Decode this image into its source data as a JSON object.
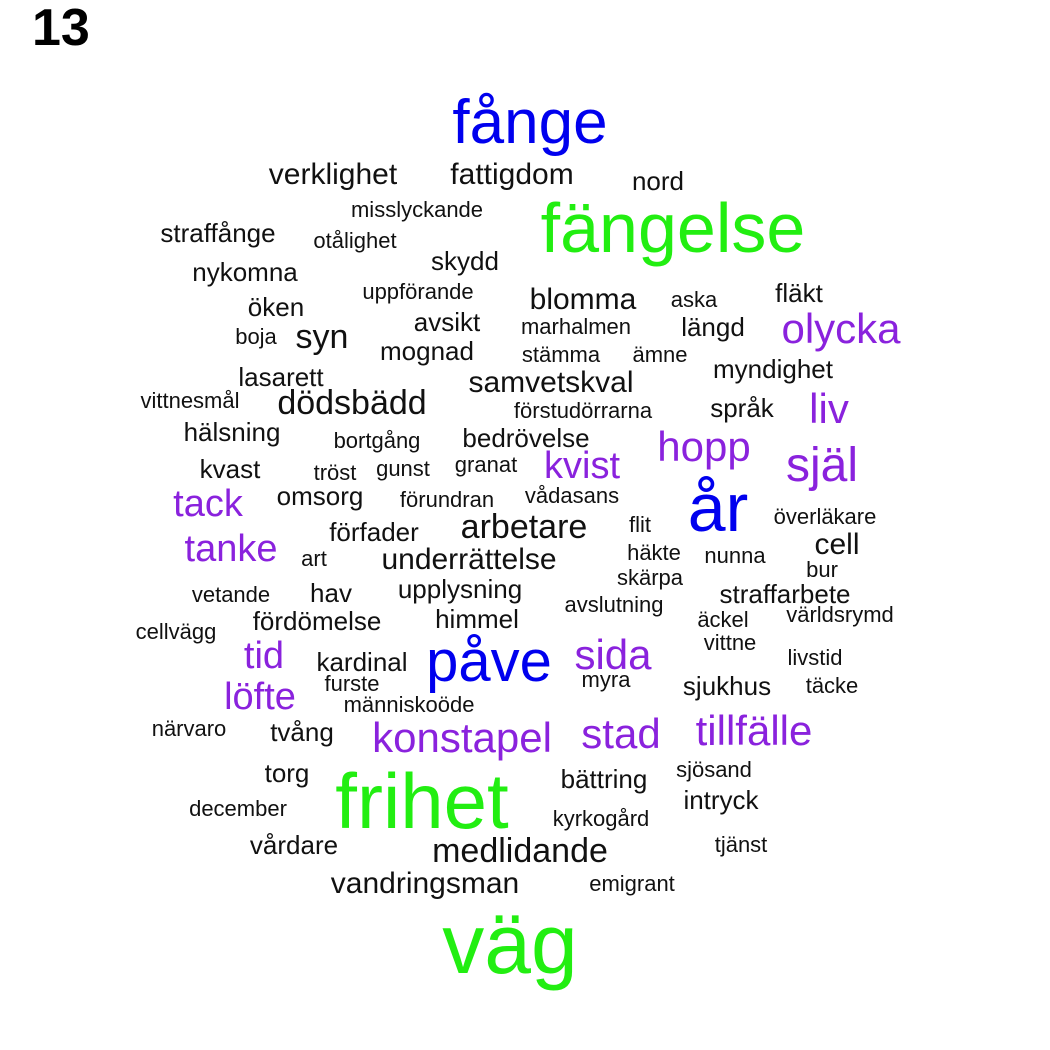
{
  "panel_label": "13",
  "colors": {
    "green": "#22ee11",
    "blue": "#0000ee",
    "purple": "#8a22dd",
    "black": "#111111"
  },
  "words": [
    {
      "text": "fånge",
      "color": "blue"
    },
    {
      "text": "verklighet",
      "color": "black"
    },
    {
      "text": "fattigdom",
      "color": "black"
    },
    {
      "text": "nord",
      "color": "black"
    },
    {
      "text": "misslyckande",
      "color": "black"
    },
    {
      "text": "fängelse",
      "color": "green"
    },
    {
      "text": "straffånge",
      "color": "black"
    },
    {
      "text": "otålighet",
      "color": "black"
    },
    {
      "text": "skydd",
      "color": "black"
    },
    {
      "text": "nykomna",
      "color": "black"
    },
    {
      "text": "uppförande",
      "color": "black"
    },
    {
      "text": "blomma",
      "color": "black"
    },
    {
      "text": "aska",
      "color": "black"
    },
    {
      "text": "fläkt",
      "color": "black"
    },
    {
      "text": "öken",
      "color": "black"
    },
    {
      "text": "avsikt",
      "color": "black"
    },
    {
      "text": "marhalmen",
      "color": "black"
    },
    {
      "text": "längd",
      "color": "black"
    },
    {
      "text": "olycka",
      "color": "purple"
    },
    {
      "text": "boja",
      "color": "black"
    },
    {
      "text": "syn",
      "color": "black"
    },
    {
      "text": "mognad",
      "color": "black"
    },
    {
      "text": "stämma",
      "color": "black"
    },
    {
      "text": "ämne",
      "color": "black"
    },
    {
      "text": "lasarett",
      "color": "black"
    },
    {
      "text": "myndighet",
      "color": "black"
    },
    {
      "text": "samvetskval",
      "color": "black"
    },
    {
      "text": "vittnesmål",
      "color": "black"
    },
    {
      "text": "dödsbädd",
      "color": "black"
    },
    {
      "text": "förstudörrarna",
      "color": "black"
    },
    {
      "text": "språk",
      "color": "black"
    },
    {
      "text": "liv",
      "color": "purple"
    },
    {
      "text": "hälsning",
      "color": "black"
    },
    {
      "text": "bortgång",
      "color": "black"
    },
    {
      "text": "bedrövelse",
      "color": "black"
    },
    {
      "text": "hopp",
      "color": "purple"
    },
    {
      "text": "själ",
      "color": "purple"
    },
    {
      "text": "kvast",
      "color": "black"
    },
    {
      "text": "tröst",
      "color": "black"
    },
    {
      "text": "gunst",
      "color": "black"
    },
    {
      "text": "granat",
      "color": "black"
    },
    {
      "text": "kvist",
      "color": "purple"
    },
    {
      "text": "år",
      "color": "blue"
    },
    {
      "text": "tack",
      "color": "purple"
    },
    {
      "text": "omsorg",
      "color": "black"
    },
    {
      "text": "förundran",
      "color": "black"
    },
    {
      "text": "vådasans",
      "color": "black"
    },
    {
      "text": "flit",
      "color": "black"
    },
    {
      "text": "överläkare",
      "color": "black"
    },
    {
      "text": "förfader",
      "color": "black"
    },
    {
      "text": "arbetare",
      "color": "black"
    },
    {
      "text": "tanke",
      "color": "purple"
    },
    {
      "text": "art",
      "color": "black"
    },
    {
      "text": "underrättelse",
      "color": "black"
    },
    {
      "text": "häkte",
      "color": "black"
    },
    {
      "text": "nunna",
      "color": "black"
    },
    {
      "text": "cell",
      "color": "black"
    },
    {
      "text": "bur",
      "color": "black"
    },
    {
      "text": "skärpa",
      "color": "black"
    },
    {
      "text": "vetande",
      "color": "black"
    },
    {
      "text": "hav",
      "color": "black"
    },
    {
      "text": "upplysning",
      "color": "black"
    },
    {
      "text": "straffarbete",
      "color": "black"
    },
    {
      "text": "avslutning",
      "color": "black"
    },
    {
      "text": "världsrymd",
      "color": "black"
    },
    {
      "text": "fördömelse",
      "color": "black"
    },
    {
      "text": "himmel",
      "color": "black"
    },
    {
      "text": "äckel",
      "color": "black"
    },
    {
      "text": "cellvägg",
      "color": "black"
    },
    {
      "text": "vittne",
      "color": "black"
    },
    {
      "text": "tid",
      "color": "purple"
    },
    {
      "text": "påve",
      "color": "blue"
    },
    {
      "text": "sida",
      "color": "purple"
    },
    {
      "text": "kardinal",
      "color": "black"
    },
    {
      "text": "livstid",
      "color": "black"
    },
    {
      "text": "furste",
      "color": "black"
    },
    {
      "text": "myra",
      "color": "black"
    },
    {
      "text": "sjukhus",
      "color": "black"
    },
    {
      "text": "täcke",
      "color": "black"
    },
    {
      "text": "löfte",
      "color": "purple"
    },
    {
      "text": "människoöde",
      "color": "black"
    },
    {
      "text": "närvaro",
      "color": "black"
    },
    {
      "text": "tvång",
      "color": "black"
    },
    {
      "text": "konstapel",
      "color": "purple"
    },
    {
      "text": "stad",
      "color": "purple"
    },
    {
      "text": "tillfälle",
      "color": "purple"
    },
    {
      "text": "torg",
      "color": "black"
    },
    {
      "text": "sjösand",
      "color": "black"
    },
    {
      "text": "bättring",
      "color": "black"
    },
    {
      "text": "frihet",
      "color": "green"
    },
    {
      "text": "intryck",
      "color": "black"
    },
    {
      "text": "december",
      "color": "black"
    },
    {
      "text": "kyrkogård",
      "color": "black"
    },
    {
      "text": "vårdare",
      "color": "black"
    },
    {
      "text": "tjänst",
      "color": "black"
    },
    {
      "text": "medlidande",
      "color": "black"
    },
    {
      "text": "vandringsman",
      "color": "black"
    },
    {
      "text": "emigrant",
      "color": "black"
    },
    {
      "text": "väg",
      "color": "green"
    }
  ]
}
